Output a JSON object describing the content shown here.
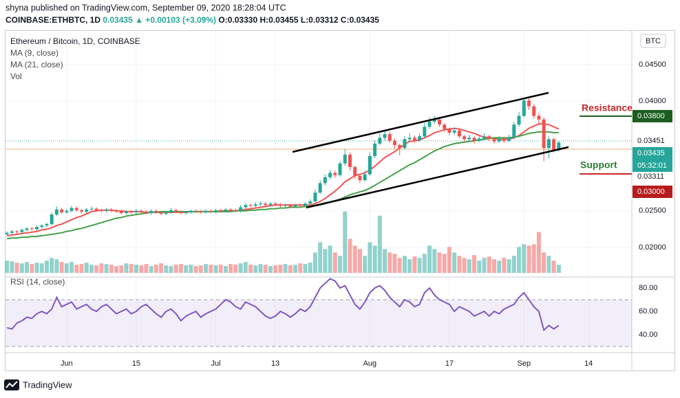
{
  "header": {
    "published": "shyna published on TradingView.com, September 09, 2020 18:28:04 UTC",
    "symbol": "COINBASE:ETHBTC, 1D",
    "last": "0.03435",
    "change": "▲ +0.00103 (+3.09%)",
    "open": "O:0.03330",
    "high": "H:0.03455",
    "low": "L:0.03312",
    "close": "C:0.03435"
  },
  "chart_data": {
    "type": "candlestick",
    "title": "Ethereum / Bitcoin, 1D, COINBASE",
    "currency": "BTC",
    "up_color": "#26a69a",
    "down_color": "#ef5350",
    "grid": true,
    "xlim": [
      -0.3,
      125.7
    ],
    "xticks": [
      {
        "value": 12,
        "label": "Jun"
      },
      {
        "value": 26,
        "label": "15"
      },
      {
        "value": 42,
        "label": "Jul"
      },
      {
        "value": 54,
        "label": "13"
      },
      {
        "value": 73,
        "label": "Aug"
      },
      {
        "value": 89,
        "label": "17"
      },
      {
        "value": 104,
        "label": "Sep"
      },
      {
        "value": 117,
        "label": "14"
      }
    ],
    "ylim": [
      0.01624,
      0.04961
    ],
    "yticks": [
      {
        "value": 0.045,
        "label": "0.04500"
      },
      {
        "value": 0.04,
        "label": "0.04000"
      },
      {
        "value": 0.025,
        "label": "0.02500"
      },
      {
        "value": 0.02,
        "label": "0.02000"
      }
    ],
    "ohlc": [
      [
        0.0218,
        0.0222,
        0.0216,
        0.022
      ],
      [
        0.022,
        0.0224,
        0.0218,
        0.0222
      ],
      [
        0.0222,
        0.0224,
        0.0219,
        0.0221
      ],
      [
        0.0221,
        0.0226,
        0.0219,
        0.0224
      ],
      [
        0.0224,
        0.0228,
        0.0222,
        0.0226
      ],
      [
        0.0226,
        0.0228,
        0.0223,
        0.0225
      ],
      [
        0.0225,
        0.023,
        0.0223,
        0.0228
      ],
      [
        0.0228,
        0.0232,
        0.0226,
        0.023
      ],
      [
        0.023,
        0.0234,
        0.0228,
        0.0232
      ],
      [
        0.0232,
        0.0248,
        0.023,
        0.0245
      ],
      [
        0.0245,
        0.0256,
        0.0243,
        0.0252
      ],
      [
        0.0252,
        0.0254,
        0.0246,
        0.0248
      ],
      [
        0.0248,
        0.0253,
        0.0246,
        0.025
      ],
      [
        0.025,
        0.0257,
        0.0248,
        0.0254
      ],
      [
        0.0254,
        0.0256,
        0.0249,
        0.0251
      ],
      [
        0.0251,
        0.0253,
        0.0247,
        0.0249
      ],
      [
        0.0249,
        0.0254,
        0.0247,
        0.0252
      ],
      [
        0.0252,
        0.0256,
        0.025,
        0.0253
      ],
      [
        0.0253,
        0.0255,
        0.0249,
        0.0251
      ],
      [
        0.0251,
        0.0253,
        0.0248,
        0.025
      ],
      [
        0.025,
        0.0254,
        0.0248,
        0.0252
      ],
      [
        0.0252,
        0.0254,
        0.0248,
        0.025
      ],
      [
        0.025,
        0.0252,
        0.0247,
        0.0249
      ],
      [
        0.0249,
        0.0251,
        0.0245,
        0.0247
      ],
      [
        0.0247,
        0.0251,
        0.0245,
        0.0249
      ],
      [
        0.0249,
        0.0251,
        0.0246,
        0.0248
      ],
      [
        0.0248,
        0.0253,
        0.0246,
        0.025
      ],
      [
        0.025,
        0.0252,
        0.0247,
        0.0249
      ],
      [
        0.0249,
        0.0251,
        0.0245,
        0.0247
      ],
      [
        0.0247,
        0.0252,
        0.0245,
        0.025
      ],
      [
        0.025,
        0.0252,
        0.0246,
        0.0248
      ],
      [
        0.0248,
        0.025,
        0.0244,
        0.0246
      ],
      [
        0.0246,
        0.025,
        0.0244,
        0.0248
      ],
      [
        0.0248,
        0.0254,
        0.0246,
        0.0251
      ],
      [
        0.0251,
        0.0253,
        0.0247,
        0.0249
      ],
      [
        0.0249,
        0.0251,
        0.0245,
        0.0247
      ],
      [
        0.0247,
        0.025,
        0.0245,
        0.0248
      ],
      [
        0.0248,
        0.0252,
        0.0246,
        0.025
      ],
      [
        0.025,
        0.0252,
        0.0247,
        0.0249
      ],
      [
        0.0249,
        0.0251,
        0.0246,
        0.0248
      ],
      [
        0.0248,
        0.0252,
        0.0246,
        0.025
      ],
      [
        0.025,
        0.0252,
        0.0247,
        0.0249
      ],
      [
        0.0249,
        0.0253,
        0.0247,
        0.0251
      ],
      [
        0.0251,
        0.0253,
        0.0248,
        0.025
      ],
      [
        0.025,
        0.0254,
        0.0248,
        0.0252
      ],
      [
        0.0252,
        0.0254,
        0.0249,
        0.0251
      ],
      [
        0.0251,
        0.0253,
        0.0248,
        0.025
      ],
      [
        0.025,
        0.0258,
        0.0248,
        0.0255
      ],
      [
        0.0255,
        0.0261,
        0.0253,
        0.0258
      ],
      [
        0.0258,
        0.026,
        0.0255,
        0.0257
      ],
      [
        0.0257,
        0.0262,
        0.0255,
        0.0259
      ],
      [
        0.0259,
        0.0263,
        0.0257,
        0.026
      ],
      [
        0.026,
        0.0262,
        0.0256,
        0.0258
      ],
      [
        0.0258,
        0.0262,
        0.0256,
        0.026
      ],
      [
        0.026,
        0.0262,
        0.0257,
        0.0259
      ],
      [
        0.0259,
        0.0261,
        0.0255,
        0.0257
      ],
      [
        0.0257,
        0.026,
        0.0255,
        0.0258
      ],
      [
        0.0258,
        0.026,
        0.0254,
        0.0256
      ],
      [
        0.0256,
        0.026,
        0.0254,
        0.0258
      ],
      [
        0.0258,
        0.026,
        0.0255,
        0.0257
      ],
      [
        0.0257,
        0.0262,
        0.0255,
        0.026
      ],
      [
        0.026,
        0.0266,
        0.0258,
        0.0263
      ],
      [
        0.0263,
        0.0279,
        0.0261,
        0.0275
      ],
      [
        0.0275,
        0.0292,
        0.0273,
        0.0288
      ],
      [
        0.0288,
        0.03,
        0.0285,
        0.0296
      ],
      [
        0.0296,
        0.0306,
        0.0293,
        0.0302
      ],
      [
        0.0302,
        0.0305,
        0.0295,
        0.0299
      ],
      [
        0.0299,
        0.0318,
        0.0297,
        0.0315
      ],
      [
        0.0315,
        0.0335,
        0.0312,
        0.0327
      ],
      [
        0.0327,
        0.033,
        0.0305,
        0.031
      ],
      [
        0.031,
        0.0312,
        0.0294,
        0.0298
      ],
      [
        0.0298,
        0.03,
        0.0288,
        0.0292
      ],
      [
        0.0292,
        0.0304,
        0.029,
        0.03
      ],
      [
        0.03,
        0.033,
        0.0298,
        0.0325
      ],
      [
        0.0325,
        0.0346,
        0.0322,
        0.0342
      ],
      [
        0.0342,
        0.0356,
        0.034,
        0.035
      ],
      [
        0.035,
        0.036,
        0.0346,
        0.0355
      ],
      [
        0.0355,
        0.0358,
        0.0343,
        0.0346
      ],
      [
        0.0346,
        0.0349,
        0.0335,
        0.034
      ],
      [
        0.034,
        0.0342,
        0.0326,
        0.0336
      ],
      [
        0.0336,
        0.0352,
        0.0334,
        0.0348
      ],
      [
        0.0348,
        0.0356,
        0.0345,
        0.035
      ],
      [
        0.035,
        0.0353,
        0.0343,
        0.0347
      ],
      [
        0.0347,
        0.0356,
        0.0345,
        0.0352
      ],
      [
        0.0352,
        0.037,
        0.035,
        0.0365
      ],
      [
        0.0365,
        0.0378,
        0.0362,
        0.0372
      ],
      [
        0.0372,
        0.038,
        0.0369,
        0.0375
      ],
      [
        0.0375,
        0.0377,
        0.0365,
        0.0368
      ],
      [
        0.0368,
        0.037,
        0.0358,
        0.0362
      ],
      [
        0.0362,
        0.0364,
        0.0353,
        0.0357
      ],
      [
        0.0357,
        0.0364,
        0.0354,
        0.036
      ],
      [
        0.036,
        0.0362,
        0.0349,
        0.0352
      ],
      [
        0.0352,
        0.0354,
        0.0344,
        0.0348
      ],
      [
        0.0348,
        0.0354,
        0.0345,
        0.035
      ],
      [
        0.035,
        0.0352,
        0.0342,
        0.0346
      ],
      [
        0.0346,
        0.0352,
        0.0344,
        0.0349
      ],
      [
        0.0349,
        0.0356,
        0.0347,
        0.0352
      ],
      [
        0.0352,
        0.0354,
        0.0345,
        0.0348
      ],
      [
        0.0348,
        0.035,
        0.0342,
        0.0345
      ],
      [
        0.0345,
        0.0352,
        0.0343,
        0.0349
      ],
      [
        0.0349,
        0.0351,
        0.0343,
        0.0346
      ],
      [
        0.0346,
        0.0354,
        0.0344,
        0.035
      ],
      [
        0.035,
        0.0372,
        0.0348,
        0.0368
      ],
      [
        0.0368,
        0.0385,
        0.0365,
        0.038
      ],
      [
        0.038,
        0.0405,
        0.0378,
        0.0401
      ],
      [
        0.0401,
        0.0404,
        0.0388,
        0.0393
      ],
      [
        0.0393,
        0.0396,
        0.0376,
        0.038
      ],
      [
        0.038,
        0.0384,
        0.037,
        0.0375
      ],
      [
        0.0375,
        0.0378,
        0.0318,
        0.0336
      ],
      [
        0.0336,
        0.0352,
        0.0322,
        0.0348
      ],
      [
        0.0348,
        0.035,
        0.033,
        0.0333
      ],
      [
        0.0333,
        0.03455,
        0.03312,
        0.03435
      ]
    ],
    "series": [
      {
        "name": "MA (9, close)",
        "color": "#ef5350",
        "values": [
          0.0216,
          0.0217,
          0.0218,
          0.0219,
          0.022,
          0.0221,
          0.0222,
          0.0224,
          0.0225,
          0.0227,
          0.023,
          0.0232,
          0.0235,
          0.0238,
          0.0241,
          0.0243,
          0.0246,
          0.0249,
          0.025,
          0.0251,
          0.0251,
          0.0251,
          0.025,
          0.025,
          0.0249,
          0.0249,
          0.0249,
          0.0249,
          0.0248,
          0.0248,
          0.0248,
          0.0248,
          0.0248,
          0.0248,
          0.0248,
          0.0248,
          0.0248,
          0.0249,
          0.0249,
          0.0249,
          0.0249,
          0.0249,
          0.0249,
          0.025,
          0.025,
          0.025,
          0.025,
          0.0251,
          0.0252,
          0.0253,
          0.0254,
          0.0255,
          0.0256,
          0.0257,
          0.0258,
          0.0258,
          0.0258,
          0.0258,
          0.0258,
          0.0258,
          0.0258,
          0.0258,
          0.026,
          0.0263,
          0.0267,
          0.0272,
          0.0277,
          0.0283,
          0.029,
          0.0294,
          0.0298,
          0.03,
          0.0302,
          0.0306,
          0.0311,
          0.0317,
          0.0323,
          0.0327,
          0.0331,
          0.0336,
          0.0341,
          0.0345,
          0.0346,
          0.0347,
          0.035,
          0.0353,
          0.0357,
          0.0359,
          0.0361,
          0.0362,
          0.0363,
          0.0362,
          0.036,
          0.0358,
          0.0356,
          0.0353,
          0.0351,
          0.035,
          0.0349,
          0.0348,
          0.0348,
          0.0348,
          0.035,
          0.0353,
          0.0358,
          0.0363,
          0.0366,
          0.0369,
          0.0369,
          0.0368,
          0.0365,
          0.0362
        ]
      },
      {
        "name": "MA (21, close)",
        "color": "#43a047",
        "values": [
          0.0212,
          0.0213,
          0.0213,
          0.0214,
          0.0214,
          0.0215,
          0.0215,
          0.0216,
          0.0217,
          0.0218,
          0.0219,
          0.022,
          0.0222,
          0.0223,
          0.0225,
          0.0226,
          0.0228,
          0.023,
          0.0232,
          0.0234,
          0.0236,
          0.0238,
          0.024,
          0.0241,
          0.0243,
          0.0244,
          0.0245,
          0.0246,
          0.0247,
          0.0248,
          0.0248,
          0.0249,
          0.0249,
          0.0249,
          0.0249,
          0.0249,
          0.0249,
          0.0249,
          0.0249,
          0.0249,
          0.0249,
          0.0249,
          0.0249,
          0.0249,
          0.0249,
          0.0249,
          0.025,
          0.025,
          0.025,
          0.0251,
          0.0251,
          0.0252,
          0.0252,
          0.0253,
          0.0253,
          0.0254,
          0.0254,
          0.0255,
          0.0255,
          0.0255,
          0.0256,
          0.0256,
          0.0257,
          0.0258,
          0.026,
          0.0262,
          0.0264,
          0.0266,
          0.0269,
          0.0272,
          0.0274,
          0.0276,
          0.0278,
          0.0281,
          0.0285,
          0.0289,
          0.0293,
          0.0297,
          0.0301,
          0.0305,
          0.0309,
          0.0313,
          0.0316,
          0.032,
          0.0324,
          0.0328,
          0.0332,
          0.0335,
          0.0338,
          0.034,
          0.0342,
          0.0343,
          0.0344,
          0.0345,
          0.0346,
          0.0347,
          0.0348,
          0.0349,
          0.035,
          0.035,
          0.035,
          0.035,
          0.0351,
          0.0352,
          0.0354,
          0.0356,
          0.0357,
          0.0358,
          0.0358,
          0.0358,
          0.0357,
          0.0357
        ]
      }
    ],
    "volume": {
      "name": "Vol",
      "ylim": [
        0,
        355
      ],
      "values": [
        18,
        17,
        15,
        14,
        16,
        13,
        15,
        14,
        18,
        22,
        20,
        16,
        14,
        16,
        12,
        13,
        15,
        12,
        11,
        14,
        13,
        12,
        10,
        11,
        14,
        13,
        12,
        11,
        13,
        10,
        12,
        14,
        11,
        10,
        12,
        13,
        11,
        12,
        10,
        11,
        13,
        12,
        11,
        12,
        10,
        13,
        12,
        14,
        16,
        12,
        11,
        13,
        12,
        10,
        11,
        12,
        13,
        11,
        12,
        14,
        13,
        15,
        30,
        45,
        35,
        40,
        30,
        25,
        90,
        50,
        40,
        35,
        25,
        45,
        40,
        84,
        35,
        30,
        28,
        22,
        25,
        20,
        24,
        22,
        28,
        40,
        35,
        30,
        28,
        38,
        30,
        25,
        22,
        20,
        26,
        18,
        22,
        24,
        20,
        18,
        22,
        20,
        25,
        38,
        42,
        40,
        42,
        60,
        30,
        25,
        18,
        12
      ]
    },
    "rsi": {
      "name": "RSI (14, close)",
      "color": "#7e57c2",
      "ylim": [
        25.3,
        88.8
      ],
      "band": [
        30,
        70
      ],
      "yticks": [
        {
          "value": 80,
          "label": "80.00"
        },
        {
          "value": 60,
          "label": "60.00"
        },
        {
          "value": 40,
          "label": "40.00"
        }
      ],
      "values": [
        46,
        45,
        50,
        52,
        55,
        54,
        58,
        60,
        58,
        62,
        72,
        64,
        66,
        68,
        62,
        64,
        66,
        62,
        60,
        64,
        66,
        62,
        58,
        60,
        62,
        58,
        60,
        64,
        66,
        62,
        58,
        55,
        60,
        62,
        58,
        52,
        56,
        58,
        60,
        55,
        58,
        60,
        62,
        66,
        70,
        68,
        64,
        62,
        68,
        66,
        64,
        60,
        56,
        54,
        56,
        60,
        58,
        55,
        58,
        62,
        60,
        64,
        72,
        80,
        84,
        88,
        86,
        80,
        82,
        74,
        66,
        62,
        68,
        76,
        80,
        82,
        78,
        72,
        68,
        64,
        70,
        68,
        64,
        66,
        76,
        80,
        74,
        70,
        68,
        66,
        60,
        64,
        62,
        60,
        56,
        58,
        60,
        56,
        60,
        58,
        62,
        64,
        66,
        72,
        76,
        70,
        64,
        60,
        44,
        48,
        45,
        48
      ]
    },
    "annotations": [
      "Resistance",
      "Support"
    ],
    "price_labels": [
      "0.03800",
      "0.03451",
      "0.03435",
      "05:32:01",
      "0.03311",
      "0.03000"
    ]
  },
  "footer": {
    "brand": "TradingView"
  }
}
